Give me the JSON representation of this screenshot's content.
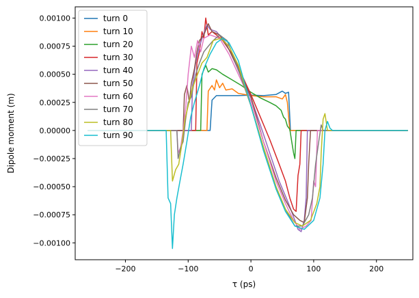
{
  "chart_data": {
    "type": "line",
    "xlabel": "τ (ps)",
    "ylabel": "Dipole moment (m)",
    "xlim": [
      -280,
      258
    ],
    "ylim": [
      -0.00115,
      0.0011
    ],
    "xticks": [
      -200,
      -100,
      0,
      100,
      200
    ],
    "xtick_labels": [
      "−200",
      "−100",
      "0",
      "100",
      "200"
    ],
    "yticks": [
      -0.001,
      -0.00075,
      -0.0005,
      -0.00025,
      0,
      0.00025,
      0.0005,
      0.00075,
      0.001
    ],
    "ytick_labels": [
      "−0.00100",
      "−0.00075",
      "−0.00050",
      "−0.00025",
      "0.00000",
      "0.00025",
      "0.00050",
      "0.00075",
      "0.00100"
    ],
    "grid": false,
    "legend_position": "top-left",
    "series": [
      {
        "name": "turn 0",
        "color": "#1f77b4",
        "points": [
          [
            -260,
            0
          ],
          [
            -65,
            0
          ],
          [
            -62,
            0.00027
          ],
          [
            -55,
            0.00031
          ],
          [
            -40,
            0.00031
          ],
          [
            -20,
            0.00031
          ],
          [
            0,
            0.000315
          ],
          [
            20,
            0.00031
          ],
          [
            40,
            0.00032
          ],
          [
            50,
            0.00035
          ],
          [
            55,
            0.00033
          ],
          [
            60,
            0.00034
          ],
          [
            63,
            0
          ],
          [
            250,
            0
          ]
        ]
      },
      {
        "name": "turn 10",
        "color": "#ff7f0e",
        "points": [
          [
            -260,
            0
          ],
          [
            -70,
            0
          ],
          [
            -68,
            0.00035
          ],
          [
            -62,
            0.0004
          ],
          [
            -58,
            0.00036
          ],
          [
            -55,
            0.00045
          ],
          [
            -50,
            0.00038
          ],
          [
            -45,
            0.00042
          ],
          [
            -40,
            0.00036
          ],
          [
            -30,
            0.00037
          ],
          [
            -20,
            0.00033
          ],
          [
            0,
            0.00031
          ],
          [
            20,
            0.0003
          ],
          [
            40,
            0.0003
          ],
          [
            50,
            0.00028
          ],
          [
            55,
            0.00032
          ],
          [
            58,
            0.00025
          ],
          [
            62,
            0
          ],
          [
            250,
            0
          ]
        ]
      },
      {
        "name": "turn 20",
        "color": "#2ca02c",
        "points": [
          [
            -260,
            0
          ],
          [
            -80,
            0
          ],
          [
            -78,
            0.0005
          ],
          [
            -72,
            0.00058
          ],
          [
            -68,
            0.00052
          ],
          [
            -62,
            0.00055
          ],
          [
            -55,
            0.00054
          ],
          [
            -45,
            0.0005
          ],
          [
            -30,
            0.00045
          ],
          [
            -15,
            0.0004
          ],
          [
            0,
            0.00034
          ],
          [
            15,
            0.00029
          ],
          [
            30,
            0.00025
          ],
          [
            40,
            0.00022
          ],
          [
            48,
            0.00018
          ],
          [
            52,
            0.00012
          ],
          [
            55,
            0.0001
          ],
          [
            58,
            4e-05
          ],
          [
            62,
            1e-05
          ],
          [
            65,
            -0.0001
          ],
          [
            68,
            -0.0002
          ],
          [
            70,
            -0.00025
          ],
          [
            72,
            0
          ],
          [
            250,
            0
          ]
        ]
      },
      {
        "name": "turn 30",
        "color": "#d62728",
        "points": [
          [
            -260,
            0
          ],
          [
            -88,
            0
          ],
          [
            -86,
            0.0006
          ],
          [
            -82,
            0.0007
          ],
          [
            -78,
            0.00088
          ],
          [
            -75,
            0.00082
          ],
          [
            -72,
            0.001
          ],
          [
            -68,
            0.00085
          ],
          [
            -62,
            0.00088
          ],
          [
            -55,
            0.00085
          ],
          [
            -45,
            0.0008
          ],
          [
            -30,
            0.00068
          ],
          [
            -15,
            0.0005
          ],
          [
            0,
            0.00032
          ],
          [
            15,
            0.00012
          ],
          [
            30,
            -8e-05
          ],
          [
            45,
            -0.0003
          ],
          [
            55,
            -0.00045
          ],
          [
            62,
            -0.0006
          ],
          [
            68,
            -0.0007
          ],
          [
            72,
            -0.00072
          ],
          [
            75,
            -0.0004
          ],
          [
            78,
            -0.0003
          ],
          [
            80,
            0
          ],
          [
            250,
            0
          ]
        ]
      },
      {
        "name": "turn 40",
        "color": "#9467bd",
        "points": [
          [
            -260,
            0
          ],
          [
            -95,
            0
          ],
          [
            -93,
            0.0004
          ],
          [
            -88,
            0.0006
          ],
          [
            -82,
            0.00075
          ],
          [
            -76,
            0.00085
          ],
          [
            -70,
            0.00094
          ],
          [
            -65,
            0.0009
          ],
          [
            -55,
            0.00088
          ],
          [
            -40,
            0.00078
          ],
          [
            -25,
            0.0006
          ],
          [
            -10,
            0.0004
          ],
          [
            0,
            0.00029
          ],
          [
            15,
            5e-05
          ],
          [
            30,
            -0.0002
          ],
          [
            45,
            -0.00045
          ],
          [
            60,
            -0.00065
          ],
          [
            70,
            -0.0008
          ],
          [
            75,
            -0.00088
          ],
          [
            80,
            -0.0009
          ],
          [
            85,
            -0.0008
          ],
          [
            88,
            -0.0006
          ],
          [
            90,
            0
          ],
          [
            250,
            0
          ]
        ]
      },
      {
        "name": "turn 50",
        "color": "#8c564b",
        "points": [
          [
            -260,
            0
          ],
          [
            -108,
            0
          ],
          [
            -106,
            0.00032
          ],
          [
            -102,
            0.0004
          ],
          [
            -98,
            0.00025
          ],
          [
            -95,
            0.00042
          ],
          [
            -90,
            0.00055
          ],
          [
            -86,
            0.0007
          ],
          [
            -82,
            0.0008
          ],
          [
            -75,
            0.00085
          ],
          [
            -68,
            0.00095
          ],
          [
            -62,
            0.00088
          ],
          [
            -50,
            0.00085
          ],
          [
            -35,
            0.00072
          ],
          [
            -20,
            0.00055
          ],
          [
            0,
            0.0003
          ],
          [
            20,
            -0.0001
          ],
          [
            40,
            -0.00042
          ],
          [
            55,
            -0.00062
          ],
          [
            68,
            -0.00075
          ],
          [
            78,
            -0.0008
          ],
          [
            85,
            -0.00082
          ],
          [
            90,
            -0.0006
          ],
          [
            92,
            -0.0003
          ],
          [
            95,
            0
          ],
          [
            250,
            0
          ]
        ]
      },
      {
        "name": "turn 60",
        "color": "#e377c2",
        "points": [
          [
            -260,
            0
          ],
          [
            -118,
            0
          ],
          [
            -116,
            -0.0002
          ],
          [
            -112,
            -0.00015
          ],
          [
            -108,
            0
          ],
          [
            -104,
            0.0002
          ],
          [
            -100,
            0.0005
          ],
          [
            -95,
            0.00075
          ],
          [
            -90,
            0.00065
          ],
          [
            -85,
            0.0008
          ],
          [
            -80,
            0.0007
          ],
          [
            -75,
            0.00082
          ],
          [
            -65,
            0.00085
          ],
          [
            -50,
            0.00082
          ],
          [
            -35,
            0.00068
          ],
          [
            -20,
            0.0005
          ],
          [
            0,
            0.00026
          ],
          [
            20,
            -0.0001
          ],
          [
            40,
            -0.00045
          ],
          [
            55,
            -0.00065
          ],
          [
            68,
            -0.0008
          ],
          [
            78,
            -0.00088
          ],
          [
            88,
            -0.00085
          ],
          [
            96,
            -0.0008
          ],
          [
            100,
            -0.00045
          ],
          [
            103,
            -0.0005
          ],
          [
            106,
            0
          ],
          [
            250,
            0
          ]
        ]
      },
      {
        "name": "turn 70",
        "color": "#7f7f7f",
        "points": [
          [
            -260,
            0
          ],
          [
            -118,
            0
          ],
          [
            -116,
            -0.00025
          ],
          [
            -112,
            -0.00015
          ],
          [
            -108,
            -0.0001
          ],
          [
            -104,
            0.0001
          ],
          [
            -100,
            0.00025
          ],
          [
            -95,
            0.0003
          ],
          [
            -88,
            0.0005
          ],
          [
            -82,
            0.0006
          ],
          [
            -75,
            0.0007
          ],
          [
            -68,
            0.00075
          ],
          [
            -60,
            0.0008
          ],
          [
            -50,
            0.00085
          ],
          [
            -38,
            0.0008
          ],
          [
            -25,
            0.00062
          ],
          [
            0,
            0.00022
          ],
          [
            20,
            -0.00015
          ],
          [
            40,
            -0.0005
          ],
          [
            55,
            -0.0007
          ],
          [
            70,
            -0.00085
          ],
          [
            82,
            -0.00085
          ],
          [
            92,
            -0.00075
          ],
          [
            98,
            -0.0006
          ],
          [
            103,
            -0.0003
          ],
          [
            108,
            -0.0001
          ],
          [
            112,
            5e-05
          ],
          [
            115,
            0
          ],
          [
            250,
            0
          ]
        ]
      },
      {
        "name": "turn 80",
        "color": "#bcbd22",
        "points": [
          [
            -260,
            0
          ],
          [
            -128,
            0
          ],
          [
            -125,
            -0.00045
          ],
          [
            -120,
            -0.00035
          ],
          [
            -115,
            -0.0003
          ],
          [
            -110,
            -0.00012
          ],
          [
            -105,
            0.0001
          ],
          [
            -100,
            0.00022
          ],
          [
            -93,
            0.00038
          ],
          [
            -85,
            0.0005
          ],
          [
            -78,
            0.0006
          ],
          [
            -70,
            0.00065
          ],
          [
            -60,
            0.0008
          ],
          [
            -48,
            0.00082
          ],
          [
            -35,
            0.00075
          ],
          [
            -20,
            0.00058
          ],
          [
            0,
            0.00022
          ],
          [
            20,
            -0.00015
          ],
          [
            40,
            -0.0005
          ],
          [
            55,
            -0.0007
          ],
          [
            70,
            -0.00082
          ],
          [
            82,
            -0.00085
          ],
          [
            95,
            -0.0008
          ],
          [
            105,
            -0.00065
          ],
          [
            110,
            -0.0005
          ],
          [
            112,
            -0.0002
          ],
          [
            115,
            0.0001
          ],
          [
            118,
            0.00015
          ],
          [
            122,
            0
          ],
          [
            250,
            0
          ]
        ]
      },
      {
        "name": "turn 90",
        "color": "#17becf",
        "points": [
          [
            -260,
            0
          ],
          [
            -135,
            0
          ],
          [
            -132,
            -0.0006
          ],
          [
            -128,
            -0.00065
          ],
          [
            -125,
            -0.00105
          ],
          [
            -122,
            -0.00075
          ],
          [
            -118,
            -0.0006
          ],
          [
            -113,
            -0.00045
          ],
          [
            -108,
            -0.0003
          ],
          [
            -102,
            -0.0001
          ],
          [
            -96,
            0.00012
          ],
          [
            -90,
            0.00025
          ],
          [
            -82,
            0.0004
          ],
          [
            -75,
            0.00055
          ],
          [
            -65,
            0.00068
          ],
          [
            -55,
            0.00078
          ],
          [
            -45,
            0.00082
          ],
          [
            -35,
            0.00078
          ],
          [
            -20,
            0.00062
          ],
          [
            0,
            0.00022
          ],
          [
            20,
            -0.00018
          ],
          [
            40,
            -0.00052
          ],
          [
            55,
            -0.00072
          ],
          [
            70,
            -0.00085
          ],
          [
            85,
            -0.00088
          ],
          [
            100,
            -0.0008
          ],
          [
            110,
            -0.0006
          ],
          [
            115,
            -0.0003
          ],
          [
            118,
            0
          ],
          [
            122,
            8e-05
          ],
          [
            126,
            2e-05
          ],
          [
            130,
            0
          ],
          [
            250,
            0
          ]
        ]
      }
    ]
  }
}
